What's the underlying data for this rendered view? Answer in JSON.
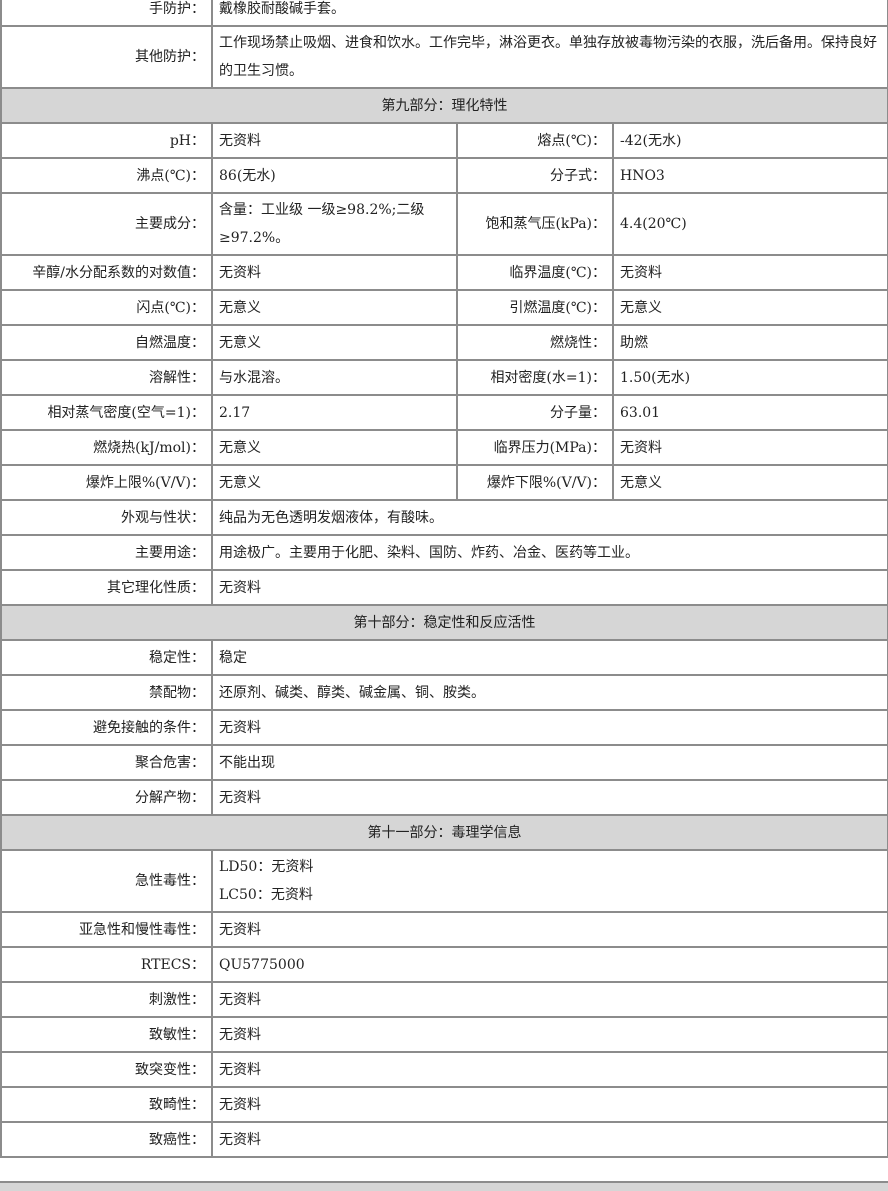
{
  "rows": [
    {
      "type": "pair",
      "label": "手防护：",
      "value": "戴橡胶耐酸碱手套。"
    },
    {
      "type": "pair",
      "tall": true,
      "label": "其他防护：",
      "value": "工作现场禁止吸烟、进食和饮水。工作完毕，淋浴更衣。单独存放被毒物污染的衣服，洗后备用。保持良好的卫生习惯。"
    },
    {
      "type": "header",
      "title": "第九部分：理化特性"
    },
    {
      "type": "quad",
      "label": "pH：",
      "value": "无资料",
      "label2": "熔点(℃)：",
      "value2": "-42(无水)"
    },
    {
      "type": "quad",
      "label": "沸点(℃)：",
      "value": "86(无水)",
      "label2": "分子式：",
      "value2": "HNO3"
    },
    {
      "type": "quad",
      "tall": true,
      "label": "主要成分：",
      "value": "含量：工业级 一级≥98.2%;二级≥97.2%。",
      "label2": "饱和蒸气压(kPa)：",
      "value2": "4.4(20℃)"
    },
    {
      "type": "quad",
      "label": "辛醇/水分配系数的对数值：",
      "value": "无资料",
      "label2": "临界温度(℃)：",
      "value2": "无资料"
    },
    {
      "type": "quad",
      "label": "闪点(℃)：",
      "value": "无意义",
      "label2": "引燃温度(℃)：",
      "value2": "无意义"
    },
    {
      "type": "quad",
      "label": "自燃温度：",
      "value": "无意义",
      "label2": "燃烧性：",
      "value2": "助燃"
    },
    {
      "type": "quad",
      "label": "溶解性：",
      "value": "与水混溶。",
      "label2": "相对密度(水=1)：",
      "value2": "1.50(无水)"
    },
    {
      "type": "quad",
      "label": "相对蒸气密度(空气=1)：",
      "value": "2.17",
      "label2": "分子量：",
      "value2": "63.01"
    },
    {
      "type": "quad",
      "label": "燃烧热(kJ/mol)：",
      "value": "无意义",
      "label2": "临界压力(MPa)：",
      "value2": "无资料"
    },
    {
      "type": "quad",
      "label": "爆炸上限%(V/V)：",
      "value": "无意义",
      "label2": "爆炸下限%(V/V)：",
      "value2": "无意义"
    },
    {
      "type": "pair",
      "label": "外观与性状：",
      "value": "纯品为无色透明发烟液体，有酸味。"
    },
    {
      "type": "pair",
      "label": "主要用途：",
      "value": "用途极广。主要用于化肥、染料、国防、炸药、冶金、医药等工业。"
    },
    {
      "type": "pair",
      "label": "其它理化性质：",
      "value": "无资料"
    },
    {
      "type": "header",
      "title": "第十部分：稳定性和反应活性"
    },
    {
      "type": "pair",
      "label": "稳定性：",
      "value": "稳定"
    },
    {
      "type": "pair",
      "label": "禁配物：",
      "value": "还原剂、碱类、醇类、碱金属、铜、胺类。"
    },
    {
      "type": "pair",
      "label": "避免接触的条件：",
      "value": "无资料"
    },
    {
      "type": "pair",
      "label": "聚合危害：",
      "value": "不能出现"
    },
    {
      "type": "pair",
      "label": "分解产物：",
      "value": "无资料"
    },
    {
      "type": "header",
      "title": "第十一部分：毒理学信息"
    },
    {
      "type": "pair2",
      "tall": true,
      "label": "急性毒性：",
      "value": "LD50：无资料",
      "value_b": "LC50：无资料"
    },
    {
      "type": "pair",
      "label": "亚急性和慢性毒性：",
      "value": "无资料"
    },
    {
      "type": "pair",
      "label": "RTECS：",
      "value": "QU5775000"
    },
    {
      "type": "pair",
      "label": "刺激性：",
      "value": "无资料"
    },
    {
      "type": "pair",
      "label": "致敏性：",
      "value": "无资料"
    },
    {
      "type": "pair",
      "label": "致突变性：",
      "value": "无资料"
    },
    {
      "type": "pair",
      "label": "致畸性：",
      "value": "无资料"
    },
    {
      "type": "pair",
      "label": "致癌性：",
      "value": "无资料"
    }
  ]
}
